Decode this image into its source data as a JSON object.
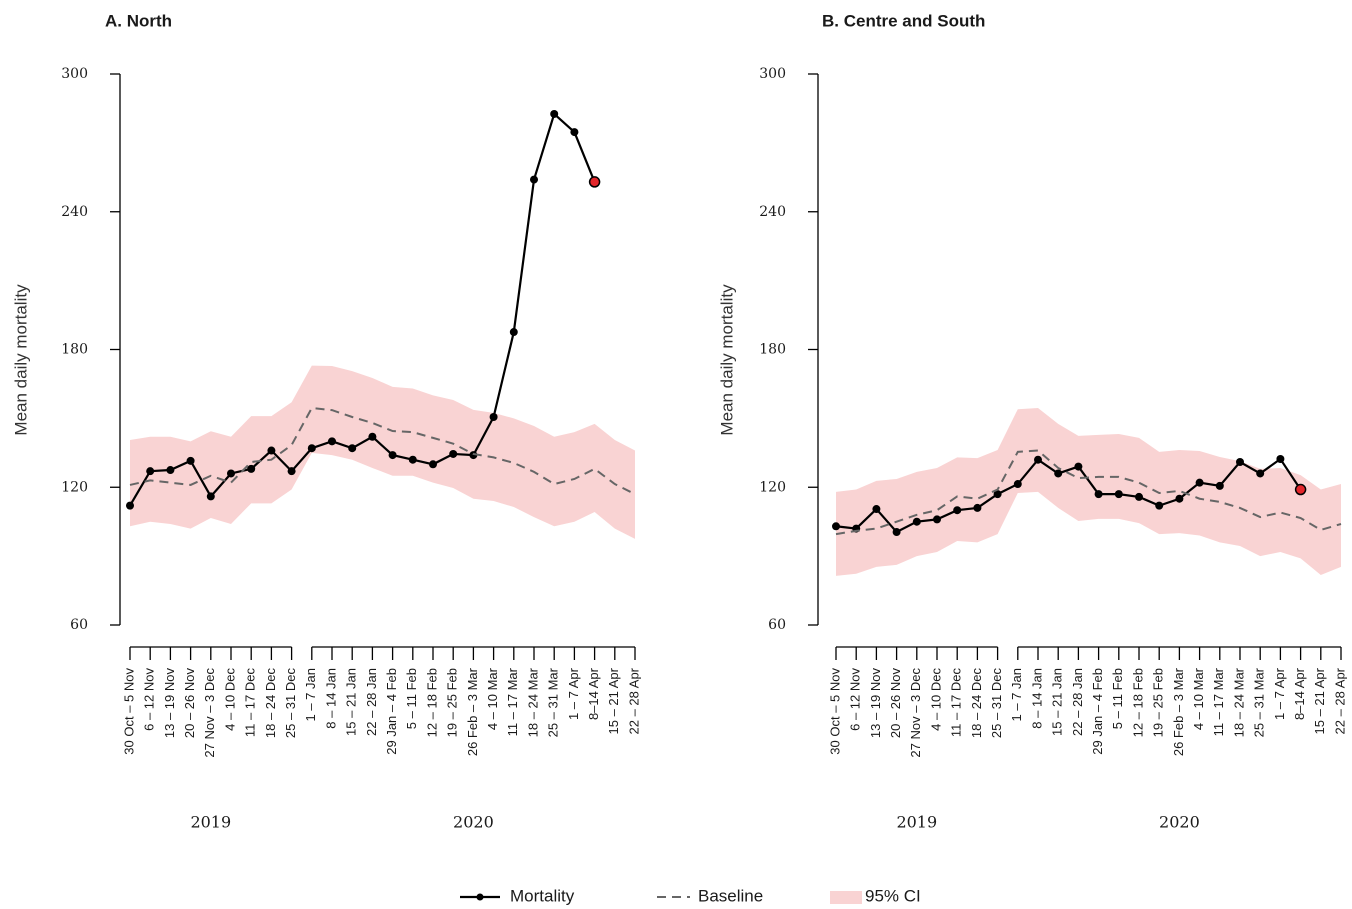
{
  "chart_data": [
    {
      "type": "line",
      "title": "A. North",
      "y_label": "Mean daily mortality",
      "category_groups": [
        {
          "label": "2019",
          "categories": [
            "30 Oct – 5 Nov",
            "6 – 12 Nov",
            "13 – 19 Nov",
            "20 – 26 Nov",
            "27 Nov – 3 Dec",
            "4 – 10 Dec",
            "11 – 17 Dec",
            "18 – 24 Dec",
            "25 – 31 Dec"
          ]
        },
        {
          "label": "2020",
          "categories": [
            "1 – 7 Jan",
            "8 – 14 Jan",
            "15 – 21 Jan",
            "22 – 28 Jan",
            "29 Jan – 4 Feb",
            "5 – 11 Feb",
            "12 – 18 Feb",
            "19 – 25 Feb",
            "26 Feb – 3 Mar",
            "4 – 10 Mar",
            "11 – 17 Mar",
            "18 – 24 Mar",
            "25 – 31 Mar",
            "1 – 7 Apr",
            "8–14 Apr",
            "15 – 21 Apr",
            "22 – 28 Apr"
          ]
        }
      ],
      "series": [
        {
          "name": "Mortality",
          "color": "#000000",
          "style": "solid-markers",
          "values": [
            112,
            127,
            127.5,
            131.5,
            116,
            126,
            128,
            136,
            127,
            137,
            140,
            137,
            142,
            134,
            132,
            130,
            134.5,
            134,
            150.6,
            187.6,
            254,
            282.6,
            274.7,
            253,
            null,
            null
          ]
        },
        {
          "name": "Baseline",
          "color": "#666666",
          "style": "dashed",
          "values": [
            121,
            123,
            122,
            121,
            125,
            122,
            131,
            132,
            138.4,
            154.5,
            153.6,
            150.6,
            148,
            144.5,
            144,
            141.5,
            139,
            134.5,
            133,
            130.6,
            126.7,
            121.4,
            123.6,
            128,
            121.4,
            117
          ]
        },
        {
          "name": "95% CI",
          "color": "#f9d3d3",
          "style": "band",
          "lower": [
            103,
            105,
            104,
            102,
            106.6,
            104,
            113,
            113,
            119,
            135,
            134,
            132,
            128.4,
            125,
            125,
            122,
            119.7,
            115,
            114,
            111.4,
            107,
            103,
            105,
            109.2,
            102,
            97.5
          ],
          "upper": [
            140.6,
            142,
            142,
            140,
            144.4,
            142,
            151,
            151,
            157,
            173,
            172.8,
            170.6,
            167.6,
            163.7,
            163,
            160,
            158,
            153.7,
            152.4,
            150,
            146.7,
            142,
            144,
            147.6,
            140.6,
            136
          ]
        }
      ],
      "highlight_color": "#e3262b",
      "ylim": [
        60,
        300
      ],
      "yticks": [
        60,
        120,
        180,
        240,
        300
      ]
    },
    {
      "type": "line",
      "title": "B. Centre and South",
      "y_label": "Mean daily mortality",
      "category_groups": [
        {
          "label": "2019",
          "categories": [
            "30 Oct – 5 Nov",
            "6 – 12 Nov",
            "13 – 19 Nov",
            "20 – 26 Nov",
            "27 Nov – 3 Dec",
            "4 – 10 Dec",
            "11 – 17 Dec",
            "18 – 24 Dec",
            "25 – 31 Dec"
          ]
        },
        {
          "label": "2020",
          "categories": [
            "1 – 7 Jan",
            "8 – 14 Jan",
            "15 – 21 Jan",
            "22 – 28 Jan",
            "29 Jan – 4 Feb",
            "5 – 11 Feb",
            "12 – 18 Feb",
            "19 – 25 Feb",
            "26 Feb – 3 Mar",
            "4 – 10 Mar",
            "11 – 17 Mar",
            "18 – 24 Mar",
            "25 – 31 Mar",
            "1 – 7 Apr",
            "8–14 Apr",
            "15 – 21 Apr",
            "22 – 28 Apr"
          ]
        }
      ],
      "series": [
        {
          "name": "Mortality",
          "color": "#000000",
          "style": "solid-markers",
          "values": [
            103,
            102,
            110.5,
            100.5,
            105,
            106,
            110,
            111,
            117,
            121.4,
            132,
            126,
            129,
            117,
            117,
            115.8,
            112,
            115,
            122,
            120.6,
            131,
            126,
            132.3,
            119,
            null,
            null
          ]
        },
        {
          "name": "Baseline",
          "color": "#666666",
          "style": "dashed",
          "values": [
            99.6,
            101,
            102,
            105,
            108,
            110,
            116,
            115,
            119,
            135.4,
            136,
            128.4,
            124,
            124.5,
            124.5,
            122,
            117.5,
            118.4,
            115,
            113.6,
            111,
            107,
            109,
            106.6,
            101.4,
            104
          ]
        },
        {
          "name": "95% CI",
          "color": "#f9d3d3",
          "style": "band",
          "lower": [
            81.4,
            82.3,
            85.3,
            86.2,
            90,
            91.8,
            96.6,
            96,
            99.6,
            117.5,
            118,
            111,
            105.3,
            106.2,
            106.2,
            104.4,
            99.6,
            100,
            99,
            96,
            94.4,
            90,
            91.8,
            89,
            81.8,
            85.3
          ],
          "upper": [
            118,
            119,
            122.8,
            123.6,
            126.7,
            128.4,
            133,
            132.7,
            136.2,
            154,
            154.5,
            147.6,
            142.4,
            142.8,
            143.2,
            141.5,
            135.4,
            136.2,
            135.8,
            133.2,
            131.4,
            128,
            128.4,
            125.3,
            119,
            121.4
          ]
        }
      ],
      "highlight_color": "#e3262b",
      "ylim": [
        60,
        300
      ],
      "yticks": [
        60,
        120,
        180,
        240,
        300
      ]
    }
  ]
}
